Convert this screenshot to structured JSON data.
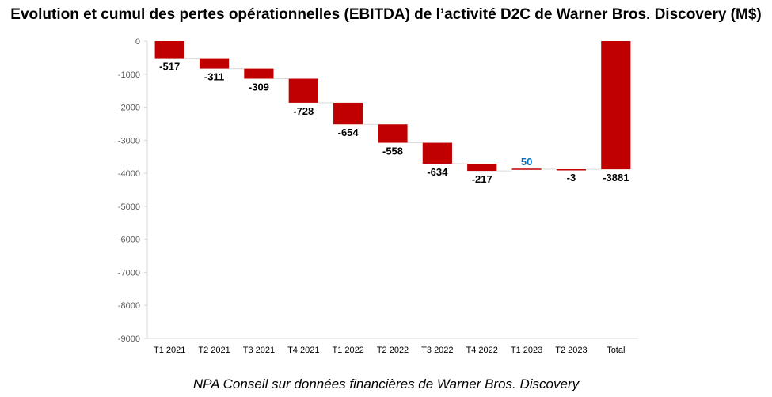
{
  "title": "Evolution et cumul des pertes opérationnelles (EBITDA) de l’activité D2C de Warner Bros. Discovery (M$)",
  "source": "NPA Conseil sur données financières de Warner Bros. Discovery",
  "colors": {
    "negative": "#c00000",
    "positive_label": "#0070c0",
    "label": "#000000",
    "axis": "#d9d9d9"
  },
  "chart_data": {
    "type": "bar",
    "subtype": "waterfall",
    "categories": [
      "T1 2021",
      "T2 2021",
      "T3 2021",
      "T4 2021",
      "T1 2022",
      "T2 2022",
      "T3 2022",
      "T4 2022",
      "T1 2023",
      "T2 2023",
      "Total"
    ],
    "values": [
      -517,
      -311,
      -309,
      -728,
      -654,
      -558,
      -634,
      -217,
      50,
      -3,
      -3881
    ],
    "data_labels": [
      "-517",
      "-311",
      "-309",
      "-728",
      "-654",
      "-558",
      "-634",
      "-217",
      "50",
      "-3",
      "-3881"
    ],
    "total_index": 10,
    "ylim": [
      -9000,
      0
    ],
    "yticks": [
      0,
      -1000,
      -2000,
      -3000,
      -4000,
      -5000,
      -6000,
      -7000,
      -8000,
      -9000
    ],
    "ytick_labels": [
      "0",
      "-1000",
      "-2000",
      "-3000",
      "-4000",
      "-5000",
      "-6000",
      "-7000",
      "-8000",
      "-9000"
    ],
    "grid": false,
    "legend": "none"
  }
}
